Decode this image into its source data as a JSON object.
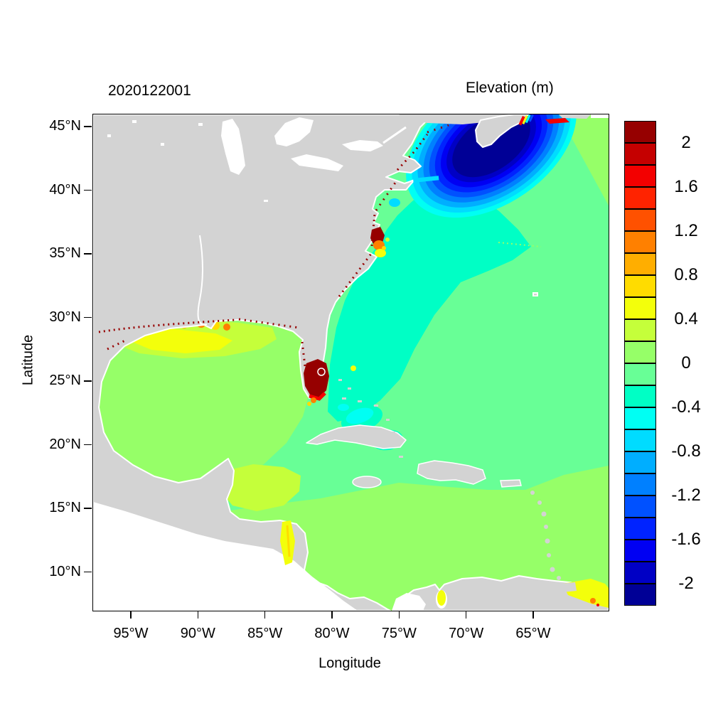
{
  "chart_data": {
    "type": "heatmap",
    "title": "2020122001",
    "colorbar_title": "Elevation (m)",
    "xlabel": "Longitude",
    "ylabel": "Latitude",
    "x_ticks": [
      "95°W",
      "90°W",
      "85°W",
      "80°W",
      "75°W",
      "70°W",
      "65°W"
    ],
    "y_ticks": [
      "45°N",
      "40°N",
      "35°N",
      "30°N",
      "25°N",
      "20°N",
      "15°N",
      "10°N"
    ],
    "lon_range_deg": [
      -97.9,
      -59.5
    ],
    "lat_range_deg": [
      7.0,
      46.0
    ],
    "grid": false,
    "legend_position": "right-colorbar",
    "colorbar": {
      "units": "m",
      "levels_bottom_to_top": [
        -2.2,
        -2.0,
        -1.8,
        -1.6,
        -1.4,
        -1.2,
        -1.0,
        -0.8,
        -0.6,
        -0.4,
        -0.2,
        0,
        0.2,
        0.4,
        0.6,
        0.8,
        1.0,
        1.2,
        1.4,
        1.6,
        1.8,
        2.0,
        2.2
      ],
      "tick_labels_top_to_bottom": [
        "2",
        "1.6",
        "1.2",
        "0.8",
        "0.4",
        "0",
        "-0.4",
        "-0.8",
        "-1.2",
        "-1.6",
        "-2"
      ],
      "colors_bottom_to_top": [
        "#000096",
        "#0000C5",
        "#0000F3",
        "#0023FF",
        "#0051FF",
        "#0080FF",
        "#00AEFF",
        "#00DCFF",
        "#00FFF3",
        "#00FFC5",
        "#68FF96",
        "#96FF68",
        "#C5FF3A",
        "#F3FF0B",
        "#FFDC00",
        "#FFAE00",
        "#FF8000",
        "#FF5100",
        "#FF2300",
        "#F30000",
        "#C50000",
        "#960000"
      ]
    },
    "map_colors": {
      "land": "#D3D3D3",
      "lakes_and_outside_domain": "#FFFFFF",
      "dry_fringe": "#FFFFFF"
    },
    "regions": [
      {
        "name": "Gulf of Mexico open water",
        "elevation_m": "0 to 0.2"
      },
      {
        "name": "NW Gulf shelf off Texas-Louisiana",
        "elevation_m": "0.2 to 0.4"
      },
      {
        "name": "Louisiana shelf lens",
        "elevation_m": "0.4 to 0.6"
      },
      {
        "name": "Louisiana bays / Mississippi delta patches",
        "elevation_m": "0.6 to 1.2"
      },
      {
        "name": "Northern Gulf coastal wet-dry speckles",
        "elevation_m": "greater than 2"
      },
      {
        "name": "Western Atlantic offshore",
        "elevation_m": "-0.2 to 0"
      },
      {
        "name": "US East Coast shelf band and Bahamas approaches",
        "elevation_m": "-0.4 to -0.2"
      },
      {
        "name": "Bahama banks patches",
        "elevation_m": "-0.6 to -0.4"
      },
      {
        "name": "Northeast Atlantic corner and far east",
        "elevation_m": "0 to 0.2"
      },
      {
        "name": "Gulf of Maine ringed depression",
        "elevation_m": "-0.8 down to below -2.2 at core"
      },
      {
        "name": "Bay of Fundy head tidal streak",
        "elevation_m": "mixed -2.2 to above 2.2"
      },
      {
        "name": "South Florida / Lake Okeechobee dome",
        "elevation_m": "greater than 2.2"
      },
      {
        "name": "Pamlico-Albemarle sounds cluster",
        "elevation_m": "0.4 to above 2 mixed"
      },
      {
        "name": "Upper Chesapeake / Delaware patch",
        "elevation_m": "-0.8 to -0.6"
      },
      {
        "name": "Long Island Sound sliver",
        "elevation_m": "-0.8 to -0.6"
      },
      {
        "name": "Caribbean north of Antilles",
        "elevation_m": "-0.2 to 0"
      },
      {
        "name": "Southern Caribbean and southeast Atlantic",
        "elevation_m": "0 to 0.2"
      },
      {
        "name": "Gulf of Honduras",
        "elevation_m": "0.2 to 0.4"
      },
      {
        "name": "Honduras-Nicaragua coast sliver",
        "elevation_m": "0.4 to 0.8"
      },
      {
        "name": "Lake Maracaibo / Venezuela coast",
        "elevation_m": "0.4 to 0.6"
      },
      {
        "name": "Trinidad / Orinoco corner",
        "elevation_m": "0.4 to 1.2"
      }
    ]
  }
}
